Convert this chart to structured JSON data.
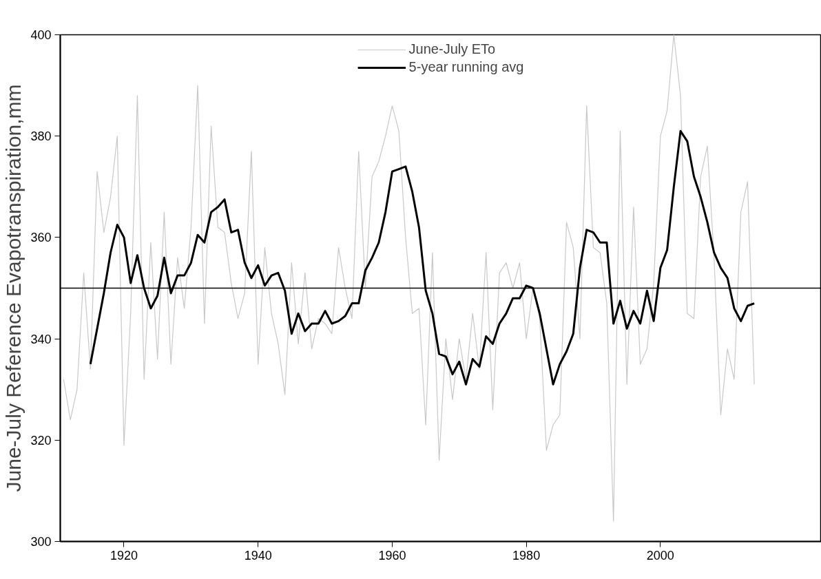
{
  "chart_data": {
    "type": "line",
    "ylabel": "June-July Reference Evapotranspiration,mm",
    "xlim": [
      1910.5,
      2024
    ],
    "ylim": [
      300,
      400
    ],
    "xticks": [
      1920,
      1940,
      1960,
      1980,
      2000
    ],
    "yticks": [
      300,
      320,
      340,
      360,
      380,
      400
    ],
    "grid": false,
    "legend": "top",
    "ref_lines": [
      {
        "axis": "y",
        "value": 350,
        "color": "#000000"
      }
    ],
    "series": [
      {
        "name": "June-July ETo",
        "color": "#c8c8c8",
        "x": [
          1911,
          1912,
          1913,
          1914,
          1915,
          1916,
          1917,
          1918,
          1919,
          1920,
          1921,
          1922,
          1923,
          1924,
          1925,
          1926,
          1927,
          1928,
          1929,
          1930,
          1931,
          1932,
          1933,
          1934,
          1935,
          1936,
          1937,
          1938,
          1939,
          1940,
          1941,
          1942,
          1943,
          1944,
          1945,
          1946,
          1947,
          1948,
          1949,
          1950,
          1951,
          1952,
          1953,
          1954,
          1955,
          1956,
          1957,
          1958,
          1959,
          1960,
          1961,
          1962,
          1963,
          1964,
          1965,
          1966,
          1967,
          1968,
          1969,
          1970,
          1971,
          1972,
          1973,
          1974,
          1975,
          1976,
          1977,
          1978,
          1979,
          1980,
          1981,
          1982,
          1983,
          1984,
          1985,
          1986,
          1987,
          1988,
          1989,
          1990,
          1991,
          1992,
          1993,
          1994,
          1995,
          1996,
          1997,
          1998,
          1999,
          2000,
          2001,
          2002,
          2003,
          2004,
          2005,
          2006,
          2007,
          2008,
          2009,
          2010,
          2011,
          2012,
          2013,
          2014
        ],
        "values": [
          332,
          324,
          330,
          353,
          334,
          373,
          361,
          368,
          380,
          319,
          345,
          388,
          332,
          359,
          336,
          365,
          335,
          356,
          346,
          362,
          390,
          343,
          382,
          362,
          361,
          351,
          344,
          349,
          377,
          335,
          358,
          345,
          339,
          329,
          355,
          339,
          353,
          338,
          344,
          343,
          341,
          358,
          350,
          344,
          377,
          350,
          372,
          375,
          380,
          386,
          381,
          360,
          345,
          346,
          323,
          357,
          316,
          340,
          328,
          340,
          332,
          345,
          334,
          357,
          326,
          353,
          355,
          350,
          355,
          340,
          350,
          344,
          318,
          323,
          325,
          363,
          358,
          340,
          386,
          358,
          357,
          347,
          304,
          381,
          331,
          366,
          335,
          338,
          351,
          380,
          385,
          400,
          388,
          345,
          344,
          372,
          378,
          356,
          325,
          338,
          332,
          365,
          371,
          331
        ]
      },
      {
        "name": "5-year running avg",
        "color": "#000000",
        "x": [
          1915,
          1916,
          1917,
          1918,
          1919,
          1920,
          1921,
          1922,
          1923,
          1924,
          1925,
          1926,
          1927,
          1928,
          1929,
          1930,
          1931,
          1932,
          1933,
          1934,
          1935,
          1936,
          1937,
          1938,
          1939,
          1940,
          1941,
          1942,
          1943,
          1944,
          1945,
          1946,
          1947,
          1948,
          1949,
          1950,
          1951,
          1952,
          1953,
          1954,
          1955,
          1956,
          1957,
          1958,
          1959,
          1960,
          1961,
          1962,
          1963,
          1964,
          1965,
          1966,
          1967,
          1968,
          1969,
          1970,
          1971,
          1972,
          1973,
          1974,
          1975,
          1976,
          1977,
          1978,
          1979,
          1980,
          1981,
          1982,
          1983,
          1984,
          1985,
          1986,
          1987,
          1988,
          1989,
          1990,
          1991,
          1992,
          1993,
          1994,
          1995,
          1996,
          1997,
          1998,
          1999,
          2000,
          2001,
          2002,
          2003,
          2004,
          2005,
          2006,
          2007,
          2008,
          2009,
          2010,
          2011,
          2012,
          2013,
          2014
        ],
        "values": [
          335,
          342,
          349,
          357,
          362.5,
          360,
          351,
          356.5,
          350,
          346,
          348.5,
          356,
          349,
          352.5,
          352.5,
          355,
          360.5,
          359,
          365,
          366,
          367.5,
          361,
          361.5,
          355,
          352,
          354.5,
          350.5,
          352.5,
          353,
          349.5,
          341,
          345,
          341.5,
          343,
          343,
          345.5,
          343,
          343.5,
          344.5,
          347,
          347,
          353.5,
          356,
          359,
          365,
          373,
          373.5,
          374,
          369,
          362,
          349.5,
          345,
          337,
          336.5,
          333,
          335.5,
          331,
          336,
          334.5,
          340.5,
          339,
          343,
          345,
          348,
          348,
          350.5,
          350,
          345,
          338,
          331,
          335,
          337.5,
          341,
          354,
          361.5,
          361,
          359,
          359,
          343,
          347.5,
          342,
          345.5,
          343,
          349.5,
          343.5,
          354,
          357.5,
          370,
          381,
          379,
          372,
          368,
          363,
          357,
          354,
          352,
          346,
          343.5,
          346.5,
          347
        ]
      }
    ]
  }
}
